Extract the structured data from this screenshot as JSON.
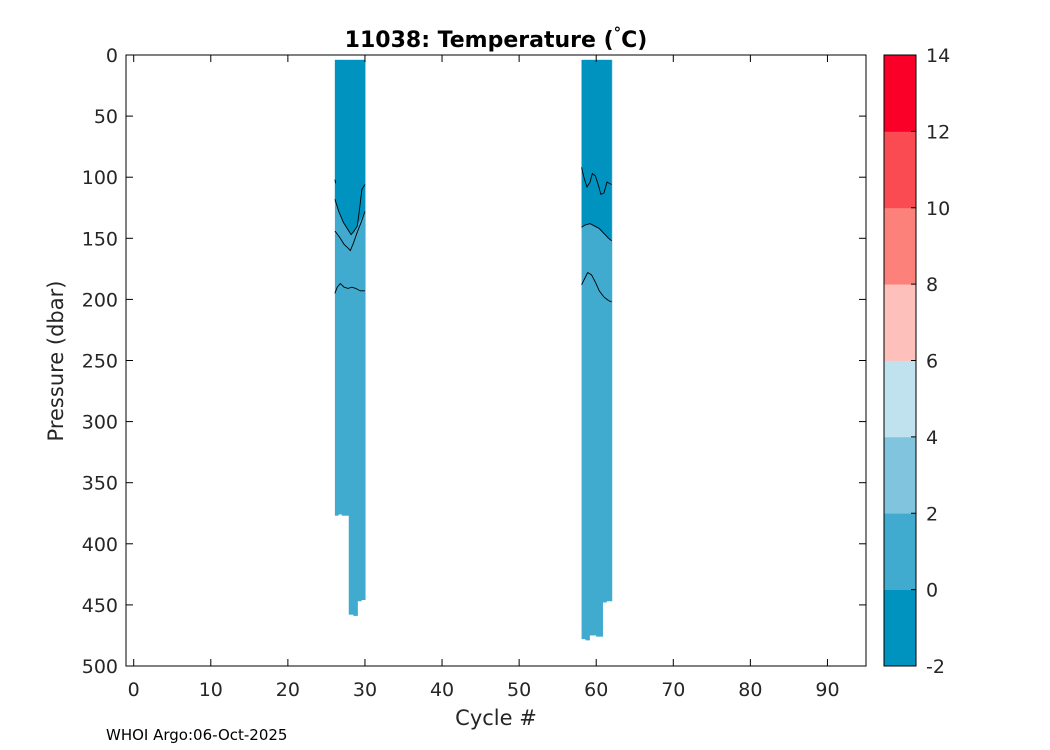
{
  "chart_data": {
    "type": "heatmap",
    "title_prefix": "11038:  Temperature (",
    "title_degree": "°",
    "title_suffix": "C)",
    "xlabel": "Cycle #",
    "ylabel": "Pressure (dbar)",
    "xlim": [
      -1,
      95
    ],
    "ylim": [
      0,
      500
    ],
    "y_reversed": true,
    "xticks": [
      0,
      10,
      20,
      30,
      40,
      50,
      60,
      70,
      80,
      90
    ],
    "yticks": [
      0,
      50,
      100,
      150,
      200,
      250,
      300,
      350,
      400,
      450,
      500
    ],
    "xtick_labels": [
      "0",
      "10",
      "20",
      "30",
      "40",
      "50",
      "60",
      "70",
      "80",
      "90"
    ],
    "ytick_labels": [
      "0",
      "50",
      "100",
      "150",
      "200",
      "250",
      "300",
      "350",
      "400",
      "450",
      "500"
    ],
    "colorbar": {
      "range": [
        -2,
        14
      ],
      "ticks": [
        "-2",
        "0",
        "2",
        "4",
        "6",
        "8",
        "10",
        "12",
        "14"
      ],
      "levels": [
        {
          "min": -2,
          "max": 0,
          "color": "#0093c0"
        },
        {
          "min": 0,
          "max": 2,
          "color": "#41aacf"
        },
        {
          "min": 2,
          "max": 4,
          "color": "#80c4de"
        },
        {
          "min": 4,
          "max": 6,
          "color": "#c0e1ee"
        },
        {
          "min": 6,
          "max": 8,
          "color": "#fec0bb"
        },
        {
          "min": 8,
          "max": 10,
          "color": "#fc817b"
        },
        {
          "min": 10,
          "max": 12,
          "color": "#fb4b52"
        },
        {
          "min": 12,
          "max": 14,
          "color": "#fa0029"
        }
      ]
    },
    "profile_groups": [
      {
        "name": "cycles-26-30",
        "cycle_start": 26.1,
        "cycle_end": 30,
        "top_pressure": 4,
        "cold_layer": [
          {
            "cycle": 26.1,
            "bottom": 118
          },
          {
            "cycle": 26.6,
            "bottom": 128
          },
          {
            "cycle": 27.2,
            "bottom": 137
          },
          {
            "cycle": 27.8,
            "bottom": 143
          },
          {
            "cycle": 28.2,
            "bottom": 147
          },
          {
            "cycle": 28.6,
            "bottom": 144
          },
          {
            "cycle": 29.2,
            "bottom": 137
          },
          {
            "cycle": 29.8,
            "bottom": 130
          },
          {
            "cycle": 30.0,
            "bottom": 128
          }
        ],
        "profile_bottoms": [
          {
            "cycle_start": 26.1,
            "cycle_end": 26.5,
            "bottom": 377
          },
          {
            "cycle_start": 26.5,
            "cycle_end": 27.0,
            "bottom": 376
          },
          {
            "cycle_start": 27.0,
            "cycle_end": 27.9,
            "bottom": 377
          },
          {
            "cycle_start": 27.9,
            "cycle_end": 28.5,
            "bottom": 458
          },
          {
            "cycle_start": 28.5,
            "cycle_end": 29.0,
            "bottom": 459
          },
          {
            "cycle_start": 29.0,
            "cycle_end": 29.5,
            "bottom": 447
          },
          {
            "cycle_start": 29.5,
            "cycle_end": 30.0,
            "bottom": 446
          }
        ],
        "contours": [
          [
            {
              "cycle": 26.1,
              "pressure": 102
            },
            {
              "cycle": 26.2,
              "pressure": 105
            }
          ],
          [
            {
              "cycle": 26.1,
              "pressure": 118
            },
            {
              "cycle": 26.6,
              "pressure": 128
            },
            {
              "cycle": 27.2,
              "pressure": 137
            },
            {
              "cycle": 27.8,
              "pressure": 143
            },
            {
              "cycle": 28.2,
              "pressure": 147
            },
            {
              "cycle": 28.6,
              "pressure": 144
            },
            {
              "cycle": 29.0,
              "pressure": 140
            },
            {
              "cycle": 29.3,
              "pressure": 126
            },
            {
              "cycle": 29.6,
              "pressure": 110
            },
            {
              "cycle": 30.0,
              "pressure": 106
            }
          ],
          [
            {
              "cycle": 26.1,
              "pressure": 144
            },
            {
              "cycle": 26.7,
              "pressure": 149
            },
            {
              "cycle": 27.3,
              "pressure": 155
            },
            {
              "cycle": 27.8,
              "pressure": 158
            },
            {
              "cycle": 28.1,
              "pressure": 160
            },
            {
              "cycle": 28.5,
              "pressure": 154
            },
            {
              "cycle": 29.0,
              "pressure": 145
            },
            {
              "cycle": 29.5,
              "pressure": 137
            },
            {
              "cycle": 30.0,
              "pressure": 128
            }
          ],
          [
            {
              "cycle": 26.1,
              "pressure": 195
            },
            {
              "cycle": 26.4,
              "pressure": 190
            },
            {
              "cycle": 26.8,
              "pressure": 187
            },
            {
              "cycle": 27.3,
              "pressure": 190
            },
            {
              "cycle": 27.8,
              "pressure": 191
            },
            {
              "cycle": 28.3,
              "pressure": 190
            },
            {
              "cycle": 28.8,
              "pressure": 191
            },
            {
              "cycle": 29.4,
              "pressure": 193
            },
            {
              "cycle": 30.0,
              "pressure": 193
            }
          ]
        ]
      },
      {
        "name": "cycles-58-62",
        "cycle_start": 58.1,
        "cycle_end": 62,
        "top_pressure": 4,
        "cold_layer": [
          {
            "cycle": 58.1,
            "bottom": 141
          },
          {
            "cycle": 58.6,
            "bottom": 139
          },
          {
            "cycle": 59.2,
            "bottom": 138
          },
          {
            "cycle": 59.8,
            "bottom": 140
          },
          {
            "cycle": 60.4,
            "bottom": 142
          },
          {
            "cycle": 61.0,
            "bottom": 146
          },
          {
            "cycle": 61.6,
            "bottom": 150
          },
          {
            "cycle": 62.0,
            "bottom": 152
          }
        ],
        "profile_bottoms": [
          {
            "cycle_start": 58.1,
            "cycle_end": 58.6,
            "bottom": 478
          },
          {
            "cycle_start": 58.6,
            "cycle_end": 59.1,
            "bottom": 479
          },
          {
            "cycle_start": 59.1,
            "cycle_end": 60.0,
            "bottom": 475
          },
          {
            "cycle_start": 60.0,
            "cycle_end": 60.8,
            "bottom": 476
          },
          {
            "cycle_start": 60.8,
            "cycle_end": 61.3,
            "bottom": 448
          },
          {
            "cycle_start": 61.3,
            "cycle_end": 62.0,
            "bottom": 447
          }
        ],
        "contours": [
          [
            {
              "cycle": 58.1,
              "pressure": 92
            },
            {
              "cycle": 58.4,
              "pressure": 100
            },
            {
              "cycle": 58.8,
              "pressure": 108
            },
            {
              "cycle": 59.2,
              "pressure": 104
            },
            {
              "cycle": 59.5,
              "pressure": 97
            },
            {
              "cycle": 59.9,
              "pressure": 99
            },
            {
              "cycle": 60.3,
              "pressure": 107
            },
            {
              "cycle": 60.6,
              "pressure": 114
            },
            {
              "cycle": 61.0,
              "pressure": 113
            },
            {
              "cycle": 61.4,
              "pressure": 104
            },
            {
              "cycle": 62.0,
              "pressure": 106
            }
          ],
          [
            {
              "cycle": 58.1,
              "pressure": 141
            },
            {
              "cycle": 58.6,
              "pressure": 139
            },
            {
              "cycle": 59.2,
              "pressure": 138
            },
            {
              "cycle": 59.8,
              "pressure": 140
            },
            {
              "cycle": 60.4,
              "pressure": 142
            },
            {
              "cycle": 61.0,
              "pressure": 146
            },
            {
              "cycle": 61.6,
              "pressure": 150
            },
            {
              "cycle": 62.0,
              "pressure": 152
            }
          ],
          [
            {
              "cycle": 58.1,
              "pressure": 188
            },
            {
              "cycle": 58.5,
              "pressure": 183
            },
            {
              "cycle": 58.9,
              "pressure": 178
            },
            {
              "cycle": 59.4,
              "pressure": 180
            },
            {
              "cycle": 59.9,
              "pressure": 186
            },
            {
              "cycle": 60.4,
              "pressure": 193
            },
            {
              "cycle": 61.0,
              "pressure": 198
            },
            {
              "cycle": 61.6,
              "pressure": 201
            },
            {
              "cycle": 62.0,
              "pressure": 202
            }
          ]
        ]
      }
    ]
  },
  "footer": {
    "credit": "WHOI Argo:06-Oct-2025"
  }
}
